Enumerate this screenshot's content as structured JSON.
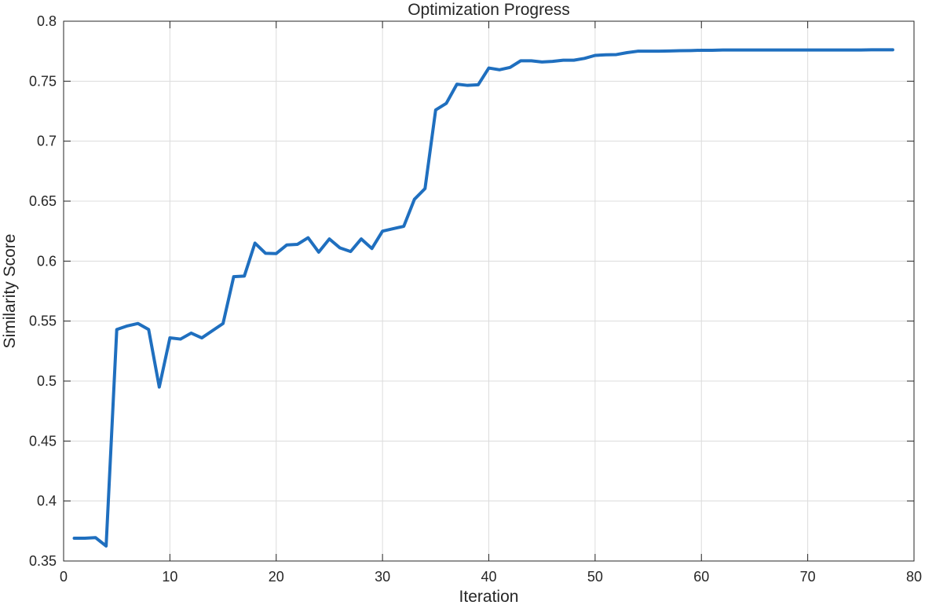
{
  "chart_data": {
    "type": "line",
    "title": "Optimization Progress",
    "xlabel": "Iteration",
    "ylabel": "Similarity Score",
    "xlim": [
      0,
      80
    ],
    "ylim": [
      0.35,
      0.8
    ],
    "xticks": [
      0,
      10,
      20,
      30,
      40,
      50,
      60,
      70,
      80
    ],
    "yticks": [
      0.35,
      0.4,
      0.45,
      0.5,
      0.55,
      0.6,
      0.65,
      0.7,
      0.75,
      0.8
    ],
    "xtick_labels": [
      "0",
      "10",
      "20",
      "30",
      "40",
      "50",
      "60",
      "70",
      "80"
    ],
    "ytick_labels": [
      "0.35",
      "0.4",
      "0.45",
      "0.5",
      "0.55",
      "0.6",
      "0.65",
      "0.7",
      "0.75",
      "0.8"
    ],
    "grid": true,
    "series": [
      {
        "color": "#1f6fbf",
        "x": [
          1,
          2,
          3,
          4,
          5,
          6,
          7,
          8,
          9,
          10,
          11,
          12,
          13,
          14,
          15,
          16,
          17,
          18,
          19,
          20,
          21,
          22,
          23,
          24,
          25,
          26,
          27,
          28,
          29,
          30,
          31,
          32,
          33,
          34,
          35,
          36,
          37,
          38,
          39,
          40,
          41,
          42,
          43,
          44,
          45,
          46,
          47,
          48,
          49,
          50,
          51,
          52,
          53,
          54,
          55,
          56,
          57,
          58,
          59,
          60,
          61,
          62,
          63,
          64,
          65,
          66,
          67,
          68,
          69,
          70,
          71,
          72,
          73,
          74,
          75,
          76,
          77,
          78
        ],
        "y": [
          0.369,
          0.369,
          0.3695,
          0.3625,
          0.543,
          0.546,
          0.548,
          0.543,
          0.495,
          0.536,
          0.535,
          0.54,
          0.536,
          0.542,
          0.548,
          0.587,
          0.5875,
          0.615,
          0.6065,
          0.6063,
          0.6135,
          0.614,
          0.6195,
          0.6075,
          0.6185,
          0.611,
          0.608,
          0.6185,
          0.6105,
          0.625,
          0.627,
          0.629,
          0.6515,
          0.6605,
          0.726,
          0.7315,
          0.7475,
          0.7465,
          0.747,
          0.761,
          0.7595,
          0.7615,
          0.767,
          0.767,
          0.766,
          0.7665,
          0.7675,
          0.7675,
          0.769,
          0.7715,
          0.772,
          0.7722,
          0.7738,
          0.775,
          0.775,
          0.775,
          0.7752,
          0.7754,
          0.7755,
          0.7758,
          0.7758,
          0.776,
          0.776,
          0.776,
          0.776,
          0.776,
          0.776,
          0.776,
          0.776,
          0.776,
          0.776,
          0.776,
          0.776,
          0.776,
          0.776,
          0.7762,
          0.7762,
          0.7762
        ]
      }
    ]
  }
}
